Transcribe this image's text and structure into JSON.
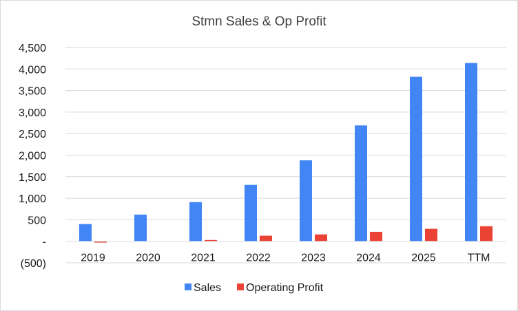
{
  "chart_data": {
    "type": "bar",
    "title": "Stmn Sales & Op Profit",
    "categories": [
      "2019",
      "2020",
      "2021",
      "2022",
      "2023",
      "2024",
      "2025",
      "TTM"
    ],
    "series": [
      {
        "name": "Sales",
        "color": "#4285F4",
        "values": [
          400,
          620,
          910,
          1310,
          1880,
          2690,
          3820,
          4140
        ]
      },
      {
        "name": "Operating Profit",
        "color": "#EA4335",
        "values": [
          -30,
          0,
          30,
          130,
          160,
          220,
          290,
          350
        ]
      }
    ],
    "ylim": [
      -500,
      4500
    ],
    "yticks": [
      4500,
      4000,
      3500,
      3000,
      2500,
      2000,
      1500,
      1000,
      500,
      0,
      -500
    ],
    "ytick_labels": [
      "4,500",
      "4,000",
      "3,500",
      "3,000",
      "2,500",
      "2,000",
      "1,500",
      "1,000",
      "500",
      "-",
      "(500)"
    ],
    "grid": true,
    "legend_position": "bottom",
    "xlabel": "",
    "ylabel": ""
  }
}
